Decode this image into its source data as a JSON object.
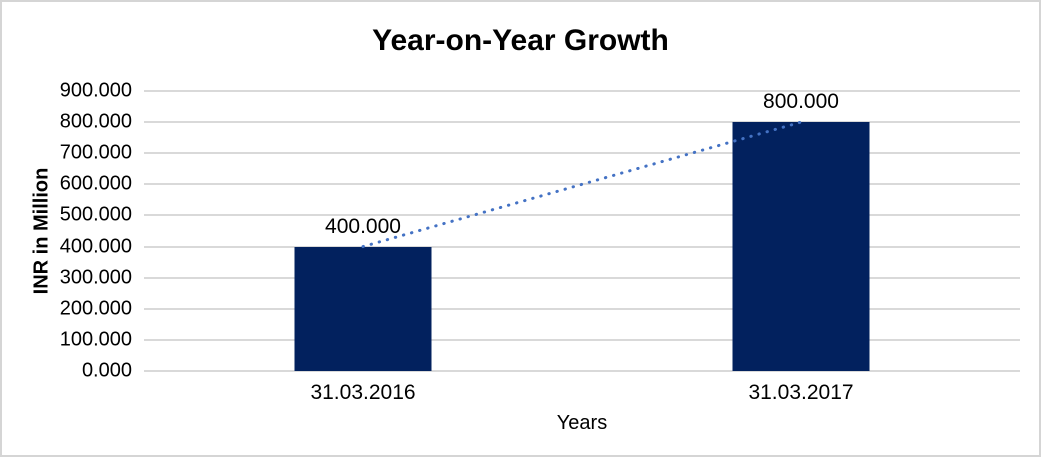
{
  "frame": {
    "background_color": "#FFFFFF",
    "border_color": "#D5D5D5"
  },
  "chart_data": {
    "type": "bar",
    "title": "Year-on-Year Growth",
    "xlabel": "Years",
    "ylabel": "INR in Million",
    "categories": [
      "31.03.2016",
      "31.03.2017"
    ],
    "values": [
      400,
      800
    ],
    "data_labels": [
      "400.000",
      "800.000"
    ],
    "ylim": [
      0,
      900
    ],
    "y_tick_step": 100,
    "y_tick_labels": [
      "0.000",
      "100.000",
      "200.000",
      "300.000",
      "400.000",
      "500.000",
      "600.000",
      "700.000",
      "800.000",
      "900.000"
    ],
    "grid": true,
    "legend_position": "none",
    "bar_color": "#02215E",
    "gridline_color": "#D9D9D9",
    "trendline": {
      "style": "dotted",
      "color": "#4472C4",
      "from": {
        "category": "31.03.2016",
        "value": 400
      },
      "to": {
        "category": "31.03.2017",
        "value": 800
      }
    }
  }
}
